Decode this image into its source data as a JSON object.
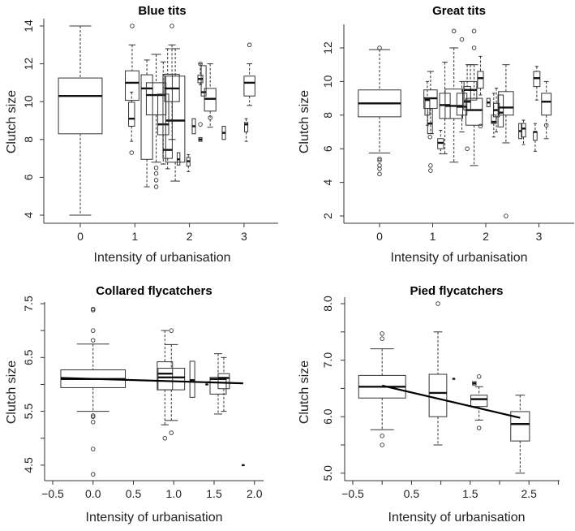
{
  "chart_data": [
    {
      "type": "box",
      "title": "Blue tits",
      "xlabel": "Intensity of urbanisation",
      "ylabel": "Clutch size",
      "xticks": [
        0,
        1,
        2,
        3
      ],
      "xticklabels": [
        "0",
        "1",
        "2",
        "3"
      ],
      "yticks": [
        4,
        6,
        8,
        10,
        12,
        14
      ],
      "yticklabels": [
        "4",
        "6",
        "8",
        "10",
        "12",
        "14"
      ],
      "xlim": [
        -0.67,
        3.65
      ],
      "ylim": [
        3.6,
        14.3
      ],
      "boxes": [
        {
          "x": 0,
          "w": 0.8,
          "lo": 4,
          "q1": 8.3,
          "med": 10.3,
          "q3": 11.25,
          "hi": 14,
          "out": []
        },
        {
          "x": 0.95,
          "w": 0.25,
          "lo": 10.07,
          "q1": 10.07,
          "med": 11.0,
          "q3": 11.63,
          "hi": 13,
          "out": [
            14
          ]
        },
        {
          "x": 0.94,
          "w": 0.11,
          "lo": 7.9,
          "q1": 8.7,
          "med": 9.1,
          "q3": 9.97,
          "hi": 10.5,
          "out": [
            7.3
          ]
        },
        {
          "x": 1.22,
          "w": 0.21,
          "lo": 5.5,
          "q1": 6.95,
          "med": 10.7,
          "q3": 11.42,
          "hi": 12.2,
          "out": []
        },
        {
          "x": 1.39,
          "w": 0.36,
          "lo": 6.8,
          "q1": 9.3,
          "med": 10.35,
          "q3": 11.0,
          "hi": 12.5,
          "out": [
            6.5,
            6.2,
            5.85,
            5.5
          ]
        },
        {
          "x": 1.52,
          "w": 0.2,
          "lo": 6.7,
          "q1": 8.25,
          "med": 8.8,
          "q3": 10.4,
          "hi": 12.1,
          "out": []
        },
        {
          "x": 1.6,
          "w": 0.17,
          "lo": 6.45,
          "q1": 7.0,
          "med": 7.45,
          "q3": 11.45,
          "hi": 12.8,
          "out": []
        },
        {
          "x": 1.74,
          "w": 0.35,
          "lo": 5.8,
          "q1": 6.8,
          "med": 9.0,
          "q3": 11.35,
          "hi": 12.8,
          "out": []
        },
        {
          "x": 1.68,
          "w": 0.27,
          "lo": 8.0,
          "q1": 10.0,
          "med": 10.7,
          "q3": 11.45,
          "hi": 13,
          "out": [
            14
          ]
        },
        {
          "x": 1.8,
          "w": 0.05,
          "lo": 6.65,
          "q1": 6.65,
          "med": 6.95,
          "q3": 7.3,
          "hi": 7.3,
          "out": []
        },
        {
          "x": 1.98,
          "w": 0.06,
          "lo": 6.3,
          "q1": 6.6,
          "med": 6.85,
          "q3": 7.05,
          "hi": 7.2,
          "out": []
        },
        {
          "x": 2.08,
          "w": 0.06,
          "lo": 8.3,
          "q1": 8.3,
          "med": 8.7,
          "q3": 9.1,
          "hi": 9.1,
          "out": []
        },
        {
          "x": 2.2,
          "w": 0.06,
          "lo": 7.9,
          "q1": 7.9,
          "med": 8.0,
          "q3": 8.1,
          "hi": 8.1,
          "out": [
            8.8
          ]
        },
        {
          "x": 2.2,
          "w": 0.09,
          "lo": 10.9,
          "q1": 11.0,
          "med": 11.2,
          "q3": 11.4,
          "hi": 12,
          "out": [
            12
          ]
        },
        {
          "x": 2.26,
          "w": 0.09,
          "lo": 10.3,
          "q1": 10.3,
          "med": 10.5,
          "q3": 11.9,
          "hi": 11.9,
          "out": []
        },
        {
          "x": 2.38,
          "w": 0.21,
          "lo": 8.65,
          "q1": 9.5,
          "med": 10.15,
          "q3": 10.7,
          "hi": 12,
          "out": [
            9.15
          ]
        },
        {
          "x": 2.63,
          "w": 0.06,
          "lo": 8.0,
          "q1": 8.0,
          "med": 8.35,
          "q3": 8.7,
          "hi": 8.7,
          "out": []
        },
        {
          "x": 3.04,
          "w": 0.06,
          "lo": 7.9,
          "q1": 8.4,
          "med": 8.8,
          "q3": 8.9,
          "hi": 9.1,
          "out": []
        },
        {
          "x": 3.1,
          "w": 0.2,
          "lo": 9.8,
          "q1": 10.3,
          "med": 11.0,
          "q3": 11.35,
          "hi": 12,
          "out": [
            13
          ]
        }
      ],
      "trend": null
    },
    {
      "type": "box",
      "title": "Great tits",
      "xlabel": "Intensity of urbanisation",
      "ylabel": "Clutch size",
      "xticks": [
        0,
        1,
        2,
        3
      ],
      "xticklabels": [
        "0",
        "1",
        "2",
        "3"
      ],
      "yticks": [
        2,
        4,
        6,
        8,
        10,
        12
      ],
      "yticklabels": [
        "2",
        "4",
        "6",
        "8",
        "10",
        "12"
      ],
      "xlim": [
        -0.67,
        3.65
      ],
      "ylim": [
        1.6,
        13.4
      ],
      "boxes": [
        {
          "x": 0,
          "w": 0.8,
          "lo": 5.75,
          "q1": 7.9,
          "med": 8.7,
          "q3": 9.5,
          "hi": 11.9,
          "out": [
            12,
            5.4,
            5.3,
            5.0,
            4.8,
            4.5
          ]
        },
        {
          "x": 0.96,
          "w": 0.25,
          "lo": 6.9,
          "q1": 8.4,
          "med": 9.0,
          "q3": 9.5,
          "hi": 10.6,
          "out": [
            5.0,
            4.7
          ]
        },
        {
          "x": 0.9,
          "w": 0.09,
          "lo": 7.4,
          "q1": 8.0,
          "med": 8.9,
          "q3": 9.0,
          "hi": 10,
          "out": []
        },
        {
          "x": 0.95,
          "w": 0.09,
          "lo": 6.9,
          "q1": 6.9,
          "med": 7.5,
          "q3": 8.4,
          "hi": 8.4,
          "out": [
            6.7
          ]
        },
        {
          "x": 1.15,
          "w": 0.11,
          "lo": 5.7,
          "q1": 6.0,
          "med": 6.35,
          "q3": 6.6,
          "hi": 7.1,
          "out": []
        },
        {
          "x": 1.23,
          "w": 0.2,
          "lo": 5.7,
          "q1": 7.8,
          "med": 8.6,
          "q3": 9.3,
          "hi": 11.15,
          "out": []
        },
        {
          "x": 1.4,
          "w": 0.33,
          "lo": 5.2,
          "q1": 7.8,
          "med": 8.55,
          "q3": 9.55,
          "hi": 12,
          "out": [
            13
          ]
        },
        {
          "x": 1.55,
          "w": 0.19,
          "lo": 7.0,
          "q1": 8.0,
          "med": 8.5,
          "q3": 9.3,
          "hi": 10,
          "out": [
            12.5
          ]
        },
        {
          "x": 1.65,
          "w": 0.13,
          "lo": 8.3,
          "q1": 8.3,
          "med": 8.8,
          "q3": 9.7,
          "hi": 11,
          "out": [
            6.0
          ]
        },
        {
          "x": 1.71,
          "w": 0.24,
          "lo": 8.9,
          "q1": 8.9,
          "med": 9.5,
          "q3": 10.0,
          "hi": 11,
          "out": []
        },
        {
          "x": 1.78,
          "w": 0.31,
          "lo": 5.0,
          "q1": 7.4,
          "med": 8.3,
          "q3": 9.0,
          "hi": 11,
          "out": [
            13,
            12
          ]
        },
        {
          "x": 1.9,
          "w": 0.11,
          "lo": 9.2,
          "q1": 9.6,
          "med": 10.2,
          "q3": 10.6,
          "hi": 11.5,
          "out": [
            7.35
          ]
        },
        {
          "x": 2.05,
          "w": 0.06,
          "lo": 8.5,
          "q1": 8.5,
          "med": 8.75,
          "q3": 9.0,
          "hi": 9.0,
          "out": []
        },
        {
          "x": 2.15,
          "w": 0.09,
          "lo": 6.7,
          "q1": 7.5,
          "med": 7.6,
          "q3": 8.0,
          "hi": 9.3,
          "out": []
        },
        {
          "x": 2.2,
          "w": 0.11,
          "lo": 7.0,
          "q1": 7.9,
          "med": 8.3,
          "q3": 8.7,
          "hi": 9.6,
          "out": []
        },
        {
          "x": 2.28,
          "w": 0.1,
          "lo": 7.3,
          "q1": 7.3,
          "med": 8.15,
          "q3": 9.2,
          "hi": 9.2,
          "out": []
        },
        {
          "x": 2.38,
          "w": 0.28,
          "lo": 6.35,
          "q1": 8.0,
          "med": 8.45,
          "q3": 9.4,
          "hi": 11,
          "out": [
            2
          ]
        },
        {
          "x": 2.65,
          "w": 0.06,
          "lo": 6.6,
          "q1": 6.6,
          "med": 7.05,
          "q3": 7.5,
          "hi": 7.5,
          "out": []
        },
        {
          "x": 2.71,
          "w": 0.08,
          "lo": 6.25,
          "q1": 6.7,
          "med": 7.2,
          "q3": 7.5,
          "hi": 7.7,
          "out": []
        },
        {
          "x": 2.93,
          "w": 0.07,
          "lo": 5.85,
          "q1": 6.5,
          "med": 7.0,
          "q3": 7.0,
          "hi": 7.5,
          "out": []
        },
        {
          "x": 2.96,
          "w": 0.12,
          "lo": 8.9,
          "q1": 9.7,
          "med": 10.2,
          "q3": 10.6,
          "hi": 10.9,
          "out": []
        },
        {
          "x": 3.14,
          "w": 0.18,
          "lo": 6.6,
          "q1": 8.0,
          "med": 8.8,
          "q3": 9.3,
          "hi": 10,
          "out": [
            7.4
          ]
        }
      ],
      "trend": null
    },
    {
      "type": "box",
      "title": "Collared flycatchers",
      "xlabel": "Intensity of urbanisation",
      "ylabel": "Clutch size",
      "xticks": [
        -0.5,
        0.0,
        0.5,
        1.0,
        1.5,
        2.0
      ],
      "xticklabels": [
        "−0.5",
        "0.0",
        "0.5",
        "1.0",
        "1.5",
        "2.0"
      ],
      "yticks": [
        4.5,
        5.0,
        5.5,
        6.0,
        6.5,
        7.0,
        7.5
      ],
      "yticklabels": [
        "4.5",
        "",
        "5.5",
        "",
        "6.5",
        "",
        "7.5"
      ],
      "xlim": [
        -0.6,
        2.1
      ],
      "ylim": [
        4.2,
        7.5
      ],
      "boxes": [
        {
          "x": 0,
          "w": 0.8,
          "lo": 5.5,
          "q1": 5.94,
          "med": 6.1,
          "q3": 6.27,
          "hi": 6.75,
          "out": [
            7.4,
            7.38,
            7.0,
            6.82,
            5.42,
            5.4,
            5.3,
            4.8,
            4.33
          ]
        },
        {
          "x": 0.89,
          "w": 0.19,
          "lo": 5.25,
          "q1": 5.9,
          "med": 6.2,
          "q3": 6.42,
          "hi": 7.0,
          "out": [
            5.0
          ]
        },
        {
          "x": 0.97,
          "w": 0.33,
          "lo": 5.33,
          "q1": 5.9,
          "med": 6.13,
          "q3": 6.3,
          "hi": 6.74,
          "out": [
            7.0,
            5.1
          ]
        },
        {
          "x": 1.23,
          "w": 0.06,
          "lo": 5.76,
          "q1": 5.76,
          "med": 6.08,
          "q3": 6.43,
          "hi": 6.43,
          "out": []
        },
        {
          "x": 1.41,
          "w": 0.03,
          "lo": 6.0,
          "q1": 6.0,
          "med": 6.0,
          "q3": 6.0,
          "hi": 6.0,
          "out": []
        },
        {
          "x": 1.55,
          "w": 0.2,
          "lo": 5.45,
          "q1": 5.82,
          "med": 6.1,
          "q3": 6.13,
          "hi": 6.57,
          "out": []
        },
        {
          "x": 1.62,
          "w": 0.14,
          "lo": 5.5,
          "q1": 5.92,
          "med": 6.12,
          "q3": 6.2,
          "hi": 6.5,
          "out": []
        },
        {
          "x": 1.86,
          "w": 0.03,
          "lo": 4.5,
          "q1": 4.5,
          "med": 4.5,
          "q3": 4.5,
          "hi": 4.5,
          "out": []
        }
      ],
      "trend": {
        "x": [
          -0.4,
          1.86
        ],
        "y": [
          6.12,
          6.02
        ]
      }
    },
    {
      "type": "box",
      "title": "Pied flycatchers",
      "xlabel": "Intensity of urbanisation",
      "ylabel": "Clutch size",
      "xticks": [
        -0.5,
        0.0,
        0.5,
        1.0,
        1.5,
        2.0,
        2.5,
        3.0
      ],
      "xticklabels": [
        "−0.5",
        "",
        "0.5",
        "",
        "1.5",
        "",
        "2.5",
        ""
      ],
      "yticks": [
        5.0,
        5.5,
        6.0,
        6.5,
        7.0,
        7.5,
        8.0
      ],
      "yticklabels": [
        "5.0",
        "",
        "6.0",
        "",
        "7.0",
        "",
        "8.0"
      ],
      "xlim": [
        -0.64,
        3.0
      ],
      "ylim": [
        4.9,
        8.1
      ],
      "boxes": [
        {
          "x": 0,
          "w": 0.8,
          "lo": 5.77,
          "q1": 6.33,
          "med": 6.53,
          "q3": 6.73,
          "hi": 7.2,
          "out": [
            7.47,
            7.38,
            5.66,
            5.5
          ]
        },
        {
          "x": 0.95,
          "w": 0.3,
          "lo": 5.5,
          "q1": 6.0,
          "med": 6.42,
          "q3": 6.75,
          "hi": 7.5,
          "out": [
            8.0
          ]
        },
        {
          "x": 1.22,
          "w": 0.04,
          "lo": 6.67,
          "q1": 6.67,
          "med": 6.67,
          "q3": 6.67,
          "hi": 6.67,
          "out": []
        },
        {
          "x": 1.57,
          "w": 0.06,
          "lo": 6.56,
          "q1": 6.56,
          "med": 6.59,
          "q3": 6.62,
          "hi": 6.62,
          "out": []
        },
        {
          "x": 1.65,
          "w": 0.28,
          "lo": 5.94,
          "q1": 6.18,
          "med": 6.31,
          "q3": 6.38,
          "hi": 6.53,
          "out": [
            6.71,
            5.8
          ]
        },
        {
          "x": 2.35,
          "w": 0.32,
          "lo": 5.0,
          "q1": 5.57,
          "med": 5.87,
          "q3": 6.09,
          "hi": 6.38,
          "out": []
        }
      ],
      "trend": {
        "x": [
          0.0,
          2.35
        ],
        "y": [
          6.55,
          5.98
        ]
      }
    }
  ]
}
